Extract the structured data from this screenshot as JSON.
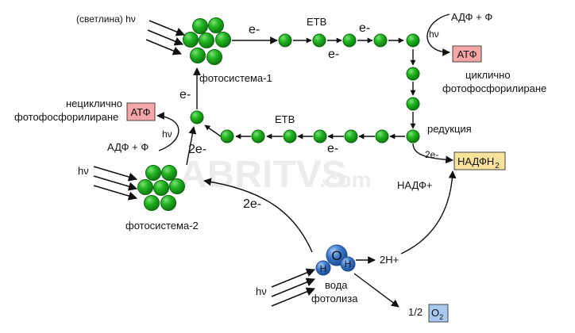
{
  "watermark": {
    "main": "ABRITVS",
    "suffix": ".com"
  },
  "colors": {
    "electron_carrier": "#22b521",
    "electron_outline": "#0e6b0e",
    "atp_box": "#f6a6a6",
    "nadph_box": "#fbe29a",
    "water_blue": "#3b78c9",
    "o2_box": "#a8c8f0",
    "arrow": "#111111"
  },
  "labels": {
    "light_ps1": "(светлина) hν",
    "e_ps1_out": "e-",
    "etc_top": "ЕТВ",
    "e_top_mid": "e-",
    "e_top_low": "e-",
    "adp_p_top": "АДФ + Ф",
    "hv_top": "hν",
    "atp_top": "АТФ",
    "cyclic_1": "циклично",
    "cyclic_2": "фотофосфорилиране",
    "ps1": "фотосистема-1",
    "e_ps1_in": "e-",
    "noncyclic_1": "нециклично",
    "noncyclic_2": "фотофосфорилиране",
    "atp_left": "АТФ",
    "etc_bottom": "ЕТВ",
    "e_bottom": "e-",
    "reduction": "редукция",
    "hv_left": "hν",
    "two_e_up": "2e-",
    "adp_p_left": "АДФ + Ф",
    "two_e_nadp": "2e-",
    "nadph_main": "НАДФН",
    "nadph_sub": "2",
    "nadp": "НАДФ+",
    "light_ps2": "hν",
    "ps2": "фотосистема-2",
    "two_e_water": "2e-",
    "atom_o": "O",
    "atom_h1": "H",
    "atom_h2": "H",
    "two_h": "2H+",
    "water": "вода",
    "photolysis": "фотолиза",
    "light_water": "hν",
    "half_o2": "1/2",
    "o2_main": "O",
    "o2_sub": "2"
  }
}
